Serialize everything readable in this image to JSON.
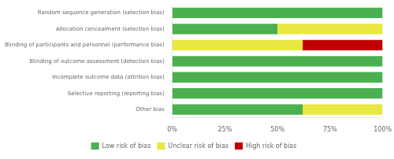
{
  "chart_data": {
    "type": "bar",
    "orientation": "horizontal",
    "stacked": true,
    "categories": [
      "Random sequence generation (selection bias)",
      "Allocation concealment (selection bias)",
      "Blinding of participants and personnel (performance bias)",
      "Blinding of outcome assessment (detection bias)",
      "Incomplete outcome data (attrition bias)",
      "Selective reporting (reporting bias)",
      "Other bias"
    ],
    "series": [
      {
        "name": "Low risk of bias",
        "color": "#4caf50",
        "values": [
          100,
          50,
          0,
          100,
          100,
          100,
          62
        ]
      },
      {
        "name": "Unclear risk of bias",
        "color": "#e8e840",
        "values": [
          0,
          50,
          62,
          0,
          0,
          0,
          38
        ]
      },
      {
        "name": "High risk of bias",
        "color": "#c00000",
        "values": [
          0,
          0,
          38,
          0,
          0,
          0,
          0
        ]
      }
    ],
    "xlim": [
      0,
      100
    ],
    "xticks": [
      {
        "value": 0,
        "label": "0%"
      },
      {
        "value": 25,
        "label": "25%"
      },
      {
        "value": 50,
        "label": "50%"
      },
      {
        "value": 75,
        "label": "75%"
      },
      {
        "value": 100,
        "label": "100%"
      }
    ],
    "grid": false,
    "legend": "bottom"
  }
}
